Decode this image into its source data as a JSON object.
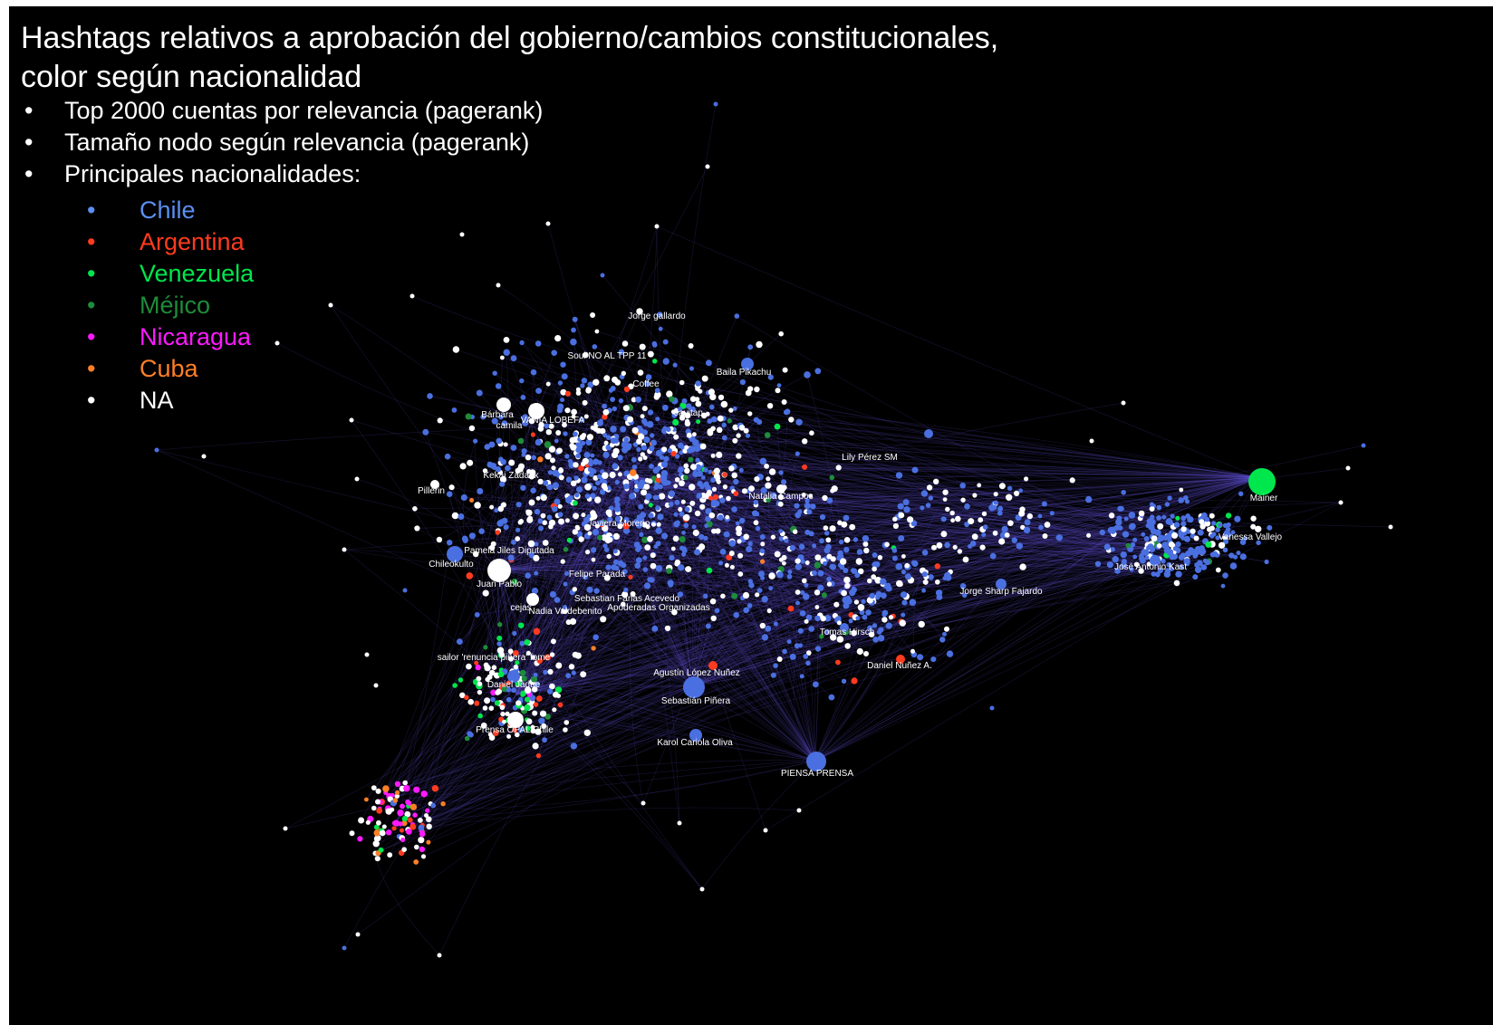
{
  "title_lines": [
    "Hashtags relativos a aprobación del gobierno/cambios constitucionales,",
    "color según nacionalidad"
  ],
  "bullets": [
    "Top 2000 cuentas por relevancia (pagerank)",
    "Tamaño nodo según relevancia (pagerank)",
    "Principales nacionalidades:"
  ],
  "legend": [
    {
      "label": "Chile",
      "color": "#5b8ff0"
    },
    {
      "label": "Argentina",
      "color": "#ff3b1f"
    },
    {
      "label": "Venezuela",
      "color": "#00e64d"
    },
    {
      "label": "Méjico",
      "color": "#1e8c3a"
    },
    {
      "label": "Nicaragua",
      "color": "#ff1aff"
    },
    {
      "label": "Cuba",
      "color": "#ff7f27"
    },
    {
      "label": "NA",
      "color": "#ffffff"
    }
  ],
  "node_labels": [
    "Jorge gallardo",
    "Soul NO AL TPP 11",
    "Baila Pikachu",
    "Coffee",
    "Javitap",
    "Bárbara",
    "VANIA LOBEFA",
    "camila",
    "Lily Pérez SM",
    "Kekai Zadank",
    "Pillerin",
    "Natalia Campos",
    "Javiera Moreno",
    "Mainer",
    "Vanessa Vallejo",
    "Pamela Jiles Diputada",
    "Chileokulto",
    "Juan Pablo",
    "Felipe Parada",
    "José Antonio Kast",
    "Jorge Sharp Fajardo",
    "Sebastian Farias Acevedo",
    "cejas",
    "Nadia Valdebenito",
    "Apoderadas Organizadas",
    "Tomas Hirsch",
    "sailor 'renuncia piñera' fome",
    "Daniel Nuñez A.",
    "Agustín López Nuñez",
    "Daniel Jadue",
    "Sebastián Piñera",
    "Prensa OPAL Chile",
    "Karol Cariola Oliva",
    "PIENSA PRENSA"
  ],
  "colors": {
    "background": "#000000",
    "edges": "#5a4fc8",
    "chile_node": "#4a6fe0"
  }
}
